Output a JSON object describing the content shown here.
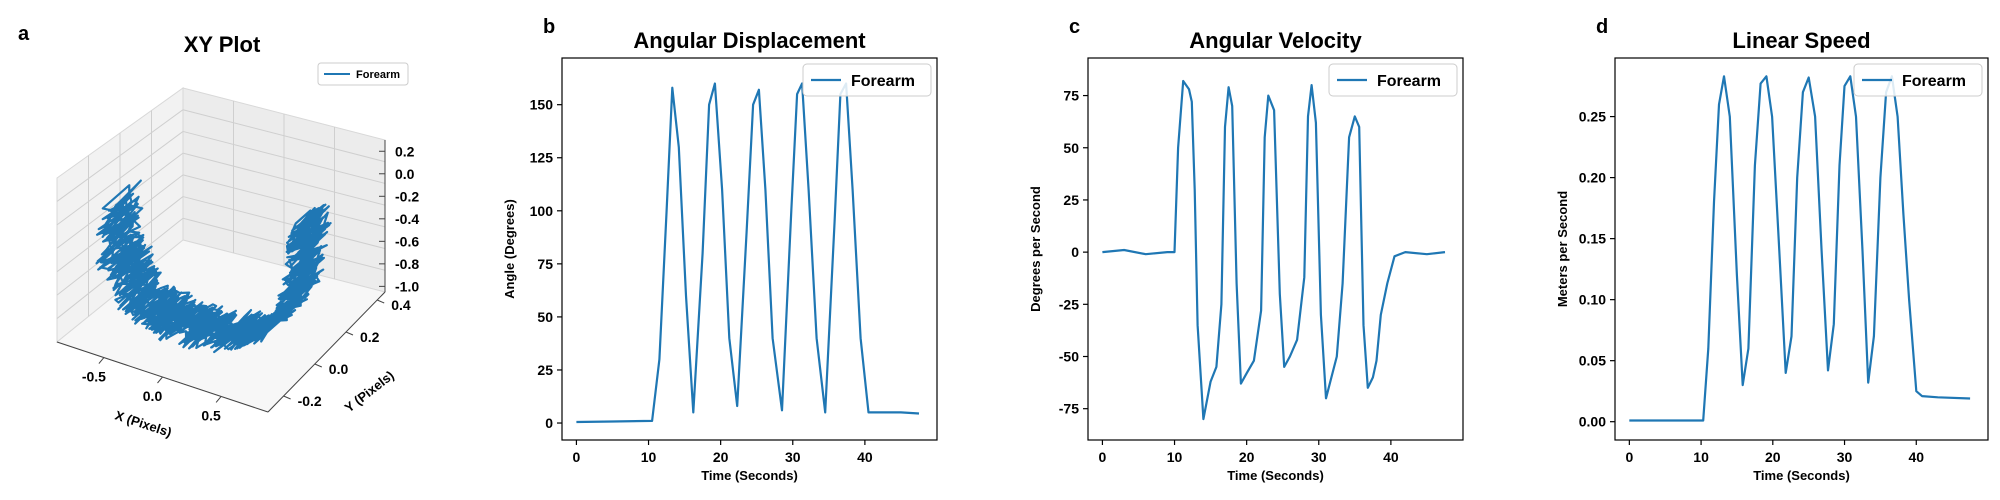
{
  "chart_data": [
    {
      "panel": "a",
      "type": "line3d",
      "title": "XY Plot",
      "xlabel": "X (Pixels)",
      "ylabel": "Y (Pixels)",
      "xticks": [
        "-0.5",
        "0.0",
        "0.5"
      ],
      "yticks": [
        "-0.2",
        "0.0",
        "0.2",
        "0.4"
      ],
      "zticks": [
        "0.2",
        "0.0",
        "-0.2",
        "-0.4",
        "-0.6",
        "-0.8",
        "-1.0"
      ],
      "xlim": [
        -0.9,
        0.9
      ],
      "ylim": [
        -0.3,
        0.45
      ],
      "zlim": [
        -1.05,
        0.3
      ],
      "legend": "top-right",
      "series": [
        {
          "name": "Forearm",
          "color": "#1f77b4"
        }
      ],
      "path_xyz": [
        [
          -0.86,
          0.05,
          -0.25
        ],
        [
          -0.8,
          0.0,
          -0.55
        ],
        [
          -0.72,
          0.02,
          -0.78
        ],
        [
          -0.6,
          0.0,
          -0.92
        ],
        [
          -0.45,
          0.02,
          -0.98
        ],
        [
          -0.3,
          0.0,
          -1.0
        ],
        [
          -0.1,
          0.0,
          -1.0
        ],
        [
          0.1,
          0.0,
          -0.98
        ],
        [
          0.3,
          0.02,
          -0.92
        ],
        [
          0.5,
          0.0,
          -0.8
        ],
        [
          0.65,
          0.02,
          -0.6
        ],
        [
          0.75,
          0.0,
          -0.35
        ],
        [
          0.8,
          0.02,
          -0.05
        ],
        [
          0.82,
          0.0,
          0.2
        ]
      ]
    },
    {
      "panel": "b",
      "type": "line",
      "title": "Angular Displacement",
      "xlabel": "Time (Seconds)",
      "ylabel": "Angle (Degrees)",
      "xlim": [
        -2,
        50
      ],
      "ylim": [
        -8,
        172
      ],
      "xticks": [
        0,
        10,
        20,
        30,
        40
      ],
      "yticks": [
        0,
        25,
        50,
        75,
        100,
        125,
        150
      ],
      "legend": "top-right",
      "series": [
        {
          "name": "Forearm",
          "x": [
            0,
            5,
            10.5,
            11.5,
            12.5,
            13.3,
            14.2,
            15.2,
            16.2,
            17.5,
            18.4,
            19.2,
            20.2,
            21.2,
            22.3,
            23.6,
            24.5,
            25.3,
            26.2,
            27.2,
            28.5,
            29.8,
            30.6,
            31.3,
            32.2,
            33.3,
            34.5,
            35.8,
            36.6,
            37.4,
            38.3,
            39.4,
            40.5,
            45,
            47.5
          ],
          "y": [
            0.5,
            0.7,
            1,
            30,
            100,
            158,
            130,
            60,
            5,
            80,
            150,
            160,
            110,
            40,
            8,
            90,
            150,
            157,
            110,
            40,
            6,
            100,
            155,
            160,
            110,
            40,
            5,
            95,
            155,
            160,
            110,
            40,
            5,
            5,
            4.5
          ]
        }
      ]
    },
    {
      "panel": "c",
      "type": "line",
      "title": "Angular Velocity",
      "xlabel": "Time (Seconds)",
      "ylabel": "Degrees per Second",
      "xlim": [
        -2,
        50
      ],
      "ylim": [
        -90,
        93
      ],
      "xticks": [
        0,
        10,
        20,
        30,
        40
      ],
      "yticks": [
        -75,
        -50,
        -25,
        0,
        25,
        50,
        75
      ],
      "legend": "top-right",
      "series": [
        {
          "name": "Forearm",
          "x": [
            0,
            3,
            6,
            9,
            10,
            10.5,
            11.2,
            12,
            12.4,
            12.8,
            13.2,
            14,
            15,
            15.8,
            16.5,
            17,
            17.5,
            18,
            18.6,
            19.2,
            20,
            21,
            22,
            22.5,
            23,
            23.8,
            24.6,
            25.2,
            26,
            27,
            28,
            28.5,
            29,
            29.6,
            30.3,
            31,
            31.6,
            32.5,
            33.3,
            34.2,
            35,
            35.6,
            36.2,
            36.8,
            37.5,
            38,
            38.6,
            39.5,
            40.5,
            42,
            45,
            47.5
          ],
          "y": [
            0,
            1,
            -1,
            0,
            0,
            50,
            82,
            78,
            72,
            30,
            -35,
            -80,
            -62,
            -55,
            -25,
            60,
            79,
            70,
            -15,
            -63,
            -58,
            -52,
            -28,
            55,
            75,
            68,
            -20,
            -55,
            -50,
            -42,
            -12,
            65,
            80,
            62,
            -30,
            -70,
            -62,
            -50,
            -15,
            55,
            65,
            60,
            -35,
            -65,
            -60,
            -52,
            -30,
            -15,
            -2,
            0,
            -1,
            0
          ]
        }
      ]
    },
    {
      "panel": "d",
      "type": "line",
      "title": "Linear Speed",
      "xlabel": "Time (Seconds)",
      "ylabel": "Meters per Second",
      "xlim": [
        -2,
        50
      ],
      "ylim": [
        -0.015,
        0.298
      ],
      "xticks": [
        0,
        10,
        20,
        30,
        40
      ],
      "yticks": [
        0.0,
        0.05,
        0.1,
        0.15,
        0.2,
        0.25
      ],
      "legend": "top-right",
      "series": [
        {
          "name": "Forearm",
          "x": [
            0,
            5,
            10.3,
            11,
            11.8,
            12.5,
            13.2,
            14,
            15,
            15.8,
            16.6,
            17.5,
            18.3,
            19.1,
            19.9,
            20.9,
            21.8,
            22.6,
            23.4,
            24.2,
            25,
            25.9,
            26.8,
            27.7,
            28.5,
            29.3,
            30,
            30.8,
            31.6,
            32.5,
            33.3,
            34.1,
            35,
            35.8,
            36.6,
            37.4,
            38.2,
            39,
            40,
            40.8,
            43,
            47.5
          ],
          "y": [
            0.001,
            0.001,
            0.001,
            0.06,
            0.18,
            0.26,
            0.283,
            0.25,
            0.12,
            0.03,
            0.06,
            0.21,
            0.277,
            0.283,
            0.25,
            0.14,
            0.04,
            0.07,
            0.2,
            0.27,
            0.282,
            0.25,
            0.14,
            0.042,
            0.08,
            0.21,
            0.275,
            0.283,
            0.25,
            0.14,
            0.032,
            0.07,
            0.2,
            0.27,
            0.283,
            0.25,
            0.17,
            0.1,
            0.025,
            0.021,
            0.02,
            0.019
          ]
        }
      ]
    }
  ]
}
